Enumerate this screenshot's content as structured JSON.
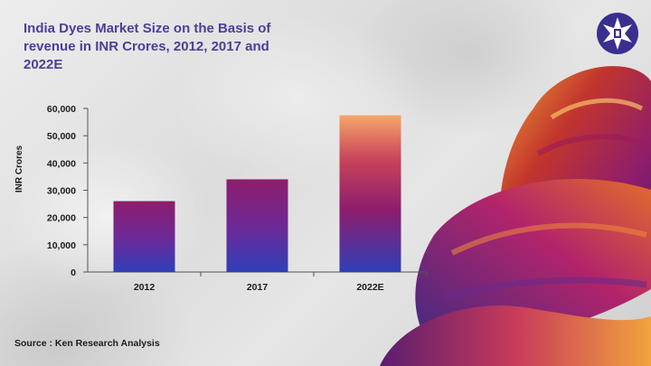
{
  "title": "India Dyes Market Size on the Basis of revenue in INR Crores, 2012, 2017 and 2022E",
  "source": "Source : Ken Research Analysis",
  "logo_icon": "ken-research-star-icon",
  "decor_icon": "dyed-yarn-skeins-image",
  "colors": {
    "title": "#4a3f9a",
    "logo_bg": "#3a2f8f",
    "bar_top": "#8e1d6c",
    "bar_bottom": "#2f3fb8",
    "bar_highlight": "#f7a66a"
  },
  "chart_data": {
    "type": "bar",
    "categories": [
      "2012",
      "2017",
      "2022E"
    ],
    "values": [
      26000,
      34000,
      57500
    ],
    "ylabel": "INR Crores",
    "xlabel": "",
    "ylim": [
      0,
      60000
    ],
    "yticks": [
      "0",
      "10,000",
      "20,000",
      "30,000",
      "40,000",
      "50,000",
      "60,000"
    ],
    "grid": false,
    "legend": "none"
  }
}
